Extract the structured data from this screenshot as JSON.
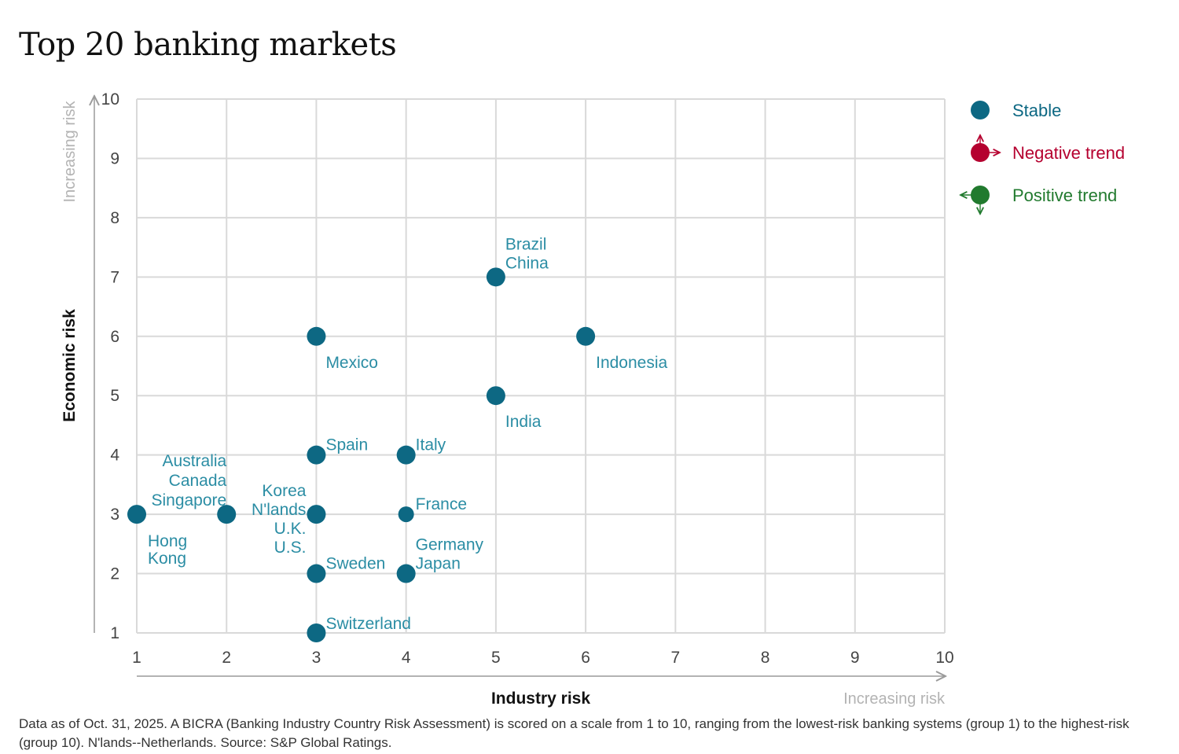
{
  "title": "Top 20 banking markets",
  "footnote": "Data as of Oct. 31,  2025. A BICRA (Banking Industry Country Risk Assessment) is scored on a scale from 1 to 10, ranging from the lowest-risk banking systems (group 1) to the highest-risk (group 10). N'lands--Netherlands. Source: S&P Global Ratings.",
  "colors": {
    "stable": "#0d6883",
    "negative": "#b5002f",
    "positive": "#217a2e",
    "label": "#2b8da4",
    "grid": "#d9d9d9"
  },
  "chart_data": {
    "type": "scatter",
    "xlabel": "Industry risk",
    "ylabel": "Economic risk",
    "x_direction_label": "Increasing risk",
    "y_direction_label": "Increasing risk",
    "xlim": [
      1,
      10
    ],
    "ylim": [
      1,
      10
    ],
    "x_ticks": [
      1,
      2,
      3,
      4,
      5,
      6,
      7,
      8,
      9,
      10
    ],
    "y_ticks": [
      1,
      2,
      3,
      4,
      5,
      6,
      7,
      8,
      9,
      10
    ],
    "grid": true,
    "legend": {
      "placement": "right",
      "entries": [
        {
          "label": "Stable",
          "marker": "dot",
          "color": "#0d6883"
        },
        {
          "label": "Negative trend",
          "marker": "dot-arrows-up-right",
          "color": "#b5002f"
        },
        {
          "label": "Positive trend",
          "marker": "dot-arrows-left-down",
          "color": "#217a2e"
        }
      ]
    },
    "points": [
      {
        "x": 1,
        "y": 3,
        "countries": [
          "Hong Kong"
        ],
        "trend": "stable"
      },
      {
        "x": 2,
        "y": 3,
        "countries": [
          "Australia",
          "Canada",
          "Singapore"
        ],
        "trend": "stable"
      },
      {
        "x": 3,
        "y": 1,
        "countries": [
          "Switzerland"
        ],
        "trend": "stable"
      },
      {
        "x": 3,
        "y": 2,
        "countries": [
          "Sweden"
        ],
        "trend": "stable"
      },
      {
        "x": 3,
        "y": 3,
        "countries": [
          "Korea",
          "N'lands",
          "U.K.",
          "U.S."
        ],
        "trend": "stable"
      },
      {
        "x": 3,
        "y": 4,
        "countries": [
          "Spain"
        ],
        "trend": "stable"
      },
      {
        "x": 3,
        "y": 6,
        "countries": [
          "Mexico"
        ],
        "trend": "stable"
      },
      {
        "x": 4,
        "y": 2,
        "countries": [
          "Germany",
          "Japan"
        ],
        "trend": "stable"
      },
      {
        "x": 4,
        "y": 3,
        "countries": [
          "France"
        ],
        "trend": "stable"
      },
      {
        "x": 4,
        "y": 4,
        "countries": [
          "Italy"
        ],
        "trend": "stable"
      },
      {
        "x": 5,
        "y": 5,
        "countries": [
          "India"
        ],
        "trend": "stable"
      },
      {
        "x": 5,
        "y": 7,
        "countries": [
          "Brazil",
          "China"
        ],
        "trend": "stable"
      },
      {
        "x": 6,
        "y": 6,
        "countries": [
          "Indonesia"
        ],
        "trend": "stable"
      }
    ]
  }
}
